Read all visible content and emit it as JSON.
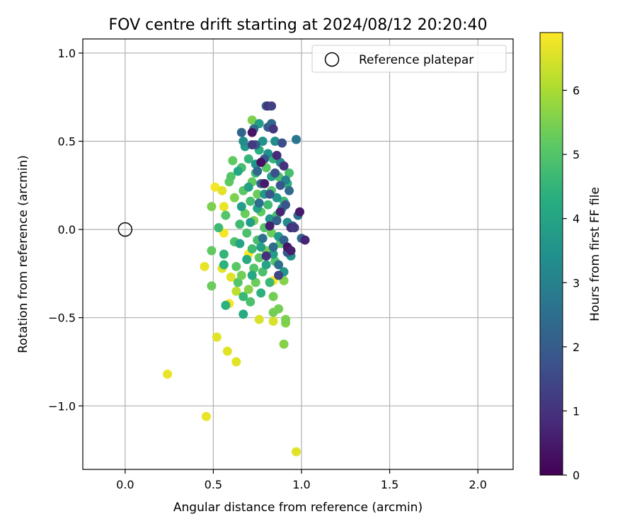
{
  "chart_data": {
    "type": "scatter",
    "title": "FOV centre drift starting at 2024/08/12 20:20:40",
    "xlabel": "Angular distance from reference (arcmin)",
    "ylabel": "Rotation from reference (arcmin)",
    "xlim": [
      -0.24,
      2.2
    ],
    "ylim": [
      -1.36,
      1.08
    ],
    "xticks": [
      0.0,
      0.5,
      1.0,
      1.5,
      2.0
    ],
    "xtick_labels": [
      "0.0",
      "0.5",
      "1.0",
      "1.5",
      "2.0"
    ],
    "yticks": [
      -1.0,
      -0.5,
      0.0,
      0.5,
      1.0
    ],
    "ytick_labels": [
      "−1.0",
      "−0.5",
      "0.0",
      "0.5",
      "1.0"
    ],
    "grid": true,
    "legend": {
      "placement": "top-right",
      "entries": [
        {
          "label": "Reference platepar",
          "marker": "open-circle",
          "color": "#000000"
        }
      ]
    },
    "reference_point": {
      "x": 0.0,
      "y": 0.0
    },
    "colorbar": {
      "label": "Hours from first FF file",
      "colormap": "viridis",
      "range": [
        0,
        6.9
      ],
      "ticks": [
        0,
        1,
        2,
        3,
        4,
        5,
        6
      ],
      "tick_labels": [
        "0",
        "1",
        "2",
        "3",
        "4",
        "5",
        "6"
      ]
    },
    "points": [
      {
        "x": 0.24,
        "y": -0.82,
        "h": 6.7
      },
      {
        "x": 0.46,
        "y": -1.06,
        "h": 6.7
      },
      {
        "x": 0.97,
        "y": -1.26,
        "h": 6.6
      },
      {
        "x": 0.52,
        "y": -0.61,
        "h": 6.6
      },
      {
        "x": 0.58,
        "y": -0.69,
        "h": 6.6
      },
      {
        "x": 0.63,
        "y": -0.75,
        "h": 6.6
      },
      {
        "x": 0.45,
        "y": -0.21,
        "h": 6.7
      },
      {
        "x": 0.51,
        "y": 0.24,
        "h": 6.8
      },
      {
        "x": 0.55,
        "y": 0.22,
        "h": 6.6
      },
      {
        "x": 0.56,
        "y": 0.13,
        "h": 6.7
      },
      {
        "x": 0.56,
        "y": -0.02,
        "h": 6.8
      },
      {
        "x": 0.55,
        "y": -0.22,
        "h": 6.6
      },
      {
        "x": 0.6,
        "y": -0.27,
        "h": 6.6
      },
      {
        "x": 0.59,
        "y": -0.42,
        "h": 6.8
      },
      {
        "x": 0.7,
        "y": -0.14,
        "h": 6.9
      },
      {
        "x": 0.76,
        "y": -0.51,
        "h": 6.5
      },
      {
        "x": 0.84,
        "y": -0.52,
        "h": 6.5
      },
      {
        "x": 0.84,
        "y": -0.29,
        "h": 6.9
      },
      {
        "x": 0.63,
        "y": -0.35,
        "h": 6.2
      },
      {
        "x": 0.9,
        "y": -0.65,
        "h": 5.6
      },
      {
        "x": 0.91,
        "y": -0.53,
        "h": 5.6
      },
      {
        "x": 0.91,
        "y": -0.51,
        "h": 5.5
      },
      {
        "x": 0.87,
        "y": -0.45,
        "h": 5.4
      },
      {
        "x": 0.84,
        "y": -0.47,
        "h": 5.4
      },
      {
        "x": 0.84,
        "y": -0.38,
        "h": 5.4
      },
      {
        "x": 0.9,
        "y": -0.29,
        "h": 5.6
      },
      {
        "x": 0.49,
        "y": 0.13,
        "h": 5.5
      },
      {
        "x": 0.49,
        "y": -0.12,
        "h": 5.2
      },
      {
        "x": 0.49,
        "y": -0.32,
        "h": 5.3
      },
      {
        "x": 0.57,
        "y": -0.43,
        "h": 4.4
      },
      {
        "x": 0.67,
        "y": -0.48,
        "h": 4.2
      },
      {
        "x": 0.72,
        "y": 0.62,
        "h": 5.5
      },
      {
        "x": 0.61,
        "y": 0.39,
        "h": 5.2
      },
      {
        "x": 0.53,
        "y": 0.01,
        "h": 4.7
      },
      {
        "x": 0.56,
        "y": -0.14,
        "h": 4.5
      },
      {
        "x": 0.56,
        "y": -0.2,
        "h": 4.4
      },
      {
        "x": 0.57,
        "y": 0.08,
        "h": 5.0
      },
      {
        "x": 0.59,
        "y": 0.27,
        "h": 5.2
      },
      {
        "x": 0.6,
        "y": 0.3,
        "h": 5.0
      },
      {
        "x": 0.62,
        "y": 0.18,
        "h": 5.5
      },
      {
        "x": 0.62,
        "y": -0.07,
        "h": 4.9
      },
      {
        "x": 0.63,
        "y": -0.21,
        "h": 5.1
      },
      {
        "x": 0.64,
        "y": -0.3,
        "h": 5.0
      },
      {
        "x": 0.65,
        "y": 0.03,
        "h": 4.7
      },
      {
        "x": 0.66,
        "y": 0.35,
        "h": 4.8
      },
      {
        "x": 0.66,
        "y": -0.26,
        "h": 5.4
      },
      {
        "x": 0.67,
        "y": 0.22,
        "h": 5.1
      },
      {
        "x": 0.67,
        "y": -0.38,
        "h": 4.6
      },
      {
        "x": 0.68,
        "y": 0.09,
        "h": 5.3
      },
      {
        "x": 0.69,
        "y": -0.02,
        "h": 4.9
      },
      {
        "x": 0.7,
        "y": 0.4,
        "h": 4.5
      },
      {
        "x": 0.7,
        "y": -0.34,
        "h": 5.6
      },
      {
        "x": 0.71,
        "y": 0.16,
        "h": 4.8
      },
      {
        "x": 0.71,
        "y": -0.41,
        "h": 4.9
      },
      {
        "x": 0.72,
        "y": 0.27,
        "h": 5.2
      },
      {
        "x": 0.72,
        "y": -0.11,
        "h": 4.7
      },
      {
        "x": 0.73,
        "y": 0.05,
        "h": 5.5
      },
      {
        "x": 0.73,
        "y": -0.22,
        "h": 5.0
      },
      {
        "x": 0.74,
        "y": 0.32,
        "h": 4.6
      },
      {
        "x": 0.74,
        "y": -0.3,
        "h": 5.3
      },
      {
        "x": 0.75,
        "y": 0.2,
        "h": 5.3
      },
      {
        "x": 0.75,
        "y": -0.06,
        "h": 4.8
      },
      {
        "x": 0.76,
        "y": 0.45,
        "h": 4.3
      },
      {
        "x": 0.76,
        "y": -0.16,
        "h": 5.1
      },
      {
        "x": 0.77,
        "y": 0.1,
        "h": 5.2
      },
      {
        "x": 0.77,
        "y": -0.36,
        "h": 4.4
      },
      {
        "x": 0.78,
        "y": 0.26,
        "h": 5.7
      },
      {
        "x": 0.78,
        "y": -0.24,
        "h": 4.9
      },
      {
        "x": 0.79,
        "y": 0.01,
        "h": 5.0
      },
      {
        "x": 0.8,
        "y": 0.35,
        "h": 5.1
      },
      {
        "x": 0.8,
        "y": -0.12,
        "h": 5.4
      },
      {
        "x": 0.81,
        "y": 0.14,
        "h": 4.7
      },
      {
        "x": 0.82,
        "y": -0.3,
        "h": 4.6
      },
      {
        "x": 0.83,
        "y": 0.22,
        "h": 5.0
      },
      {
        "x": 0.83,
        "y": -0.02,
        "h": 5.3
      },
      {
        "x": 0.84,
        "y": 0.4,
        "h": 4.5
      },
      {
        "x": 0.85,
        "y": -0.18,
        "h": 5.0
      },
      {
        "x": 0.86,
        "y": 0.08,
        "h": 4.8
      },
      {
        "x": 0.87,
        "y": 0.3,
        "h": 4.9
      },
      {
        "x": 0.88,
        "y": -0.08,
        "h": 5.1
      },
      {
        "x": 0.9,
        "y": 0.16,
        "h": 4.6
      },
      {
        "x": 0.92,
        "y": 0.26,
        "h": 4.4
      },
      {
        "x": 0.93,
        "y": 0.32,
        "h": 4.8
      },
      {
        "x": 0.64,
        "y": 0.33,
        "h": 4.1
      },
      {
        "x": 0.65,
        "y": -0.08,
        "h": 4.0
      },
      {
        "x": 0.66,
        "y": 0.13,
        "h": 3.8
      },
      {
        "x": 0.68,
        "y": 0.47,
        "h": 3.7
      },
      {
        "x": 0.69,
        "y": -0.17,
        "h": 4.2
      },
      {
        "x": 0.7,
        "y": 0.24,
        "h": 3.9
      },
      {
        "x": 0.71,
        "y": 0.04,
        "h": 3.8
      },
      {
        "x": 0.72,
        "y": -0.26,
        "h": 4.1
      },
      {
        "x": 0.74,
        "y": 0.37,
        "h": 3.6
      },
      {
        "x": 0.75,
        "y": 0.12,
        "h": 4.0
      },
      {
        "x": 0.76,
        "y": 0.6,
        "h": 3.8
      },
      {
        "x": 0.77,
        "y": -0.1,
        "h": 3.9
      },
      {
        "x": 0.78,
        "y": 0.5,
        "h": 3.5
      },
      {
        "x": 0.79,
        "y": 0.2,
        "h": 3.7
      },
      {
        "x": 0.8,
        "y": -0.2,
        "h": 4.0
      },
      {
        "x": 0.81,
        "y": 0.43,
        "h": 3.4
      },
      {
        "x": 0.82,
        "y": 0.06,
        "h": 3.6
      },
      {
        "x": 0.83,
        "y": 0.3,
        "h": 3.9
      },
      {
        "x": 0.84,
        "y": -0.14,
        "h": 3.8
      },
      {
        "x": 0.85,
        "y": 0.5,
        "h": 3.3
      },
      {
        "x": 0.86,
        "y": 0.18,
        "h": 3.5
      },
      {
        "x": 0.87,
        "y": -0.04,
        "h": 3.7
      },
      {
        "x": 0.88,
        "y": 0.38,
        "h": 3.2
      },
      {
        "x": 0.89,
        "y": 0.12,
        "h": 3.4
      },
      {
        "x": 0.9,
        "y": -0.24,
        "h": 3.6
      },
      {
        "x": 0.91,
        "y": 0.28,
        "h": 3.1
      },
      {
        "x": 0.92,
        "y": 0.04,
        "h": 3.3
      },
      {
        "x": 0.94,
        "y": -0.15,
        "h": 3.5
      },
      {
        "x": 0.67,
        "y": 0.5,
        "h": 3.3
      },
      {
        "x": 0.66,
        "y": 0.55,
        "h": 2.2
      },
      {
        "x": 0.97,
        "y": 0.51,
        "h": 2.7
      },
      {
        "x": 0.73,
        "y": 0.57,
        "h": 2.4
      },
      {
        "x": 0.74,
        "y": 0.48,
        "h": 2.0
      },
      {
        "x": 0.75,
        "y": 0.33,
        "h": 2.3
      },
      {
        "x": 0.76,
        "y": 0.15,
        "h": 2.5
      },
      {
        "x": 0.77,
        "y": 0.26,
        "h": 2.1
      },
      {
        "x": 0.78,
        "y": -0.05,
        "h": 2.6
      },
      {
        "x": 0.79,
        "y": 0.4,
        "h": 1.9
      },
      {
        "x": 0.8,
        "y": 0.7,
        "h": 2.2
      },
      {
        "x": 0.81,
        "y": 0.58,
        "h": 2.0
      },
      {
        "x": 0.82,
        "y": 0.2,
        "h": 1.8
      },
      {
        "x": 0.83,
        "y": 0.6,
        "h": 2.3
      },
      {
        "x": 0.84,
        "y": -0.1,
        "h": 2.4
      },
      {
        "x": 0.85,
        "y": 0.32,
        "h": 1.7
      },
      {
        "x": 0.86,
        "y": 0.05,
        "h": 2.1
      },
      {
        "x": 0.87,
        "y": -0.2,
        "h": 2.5
      },
      {
        "x": 0.88,
        "y": 0.25,
        "h": 1.9
      },
      {
        "x": 0.89,
        "y": 0.49,
        "h": 1.6
      },
      {
        "x": 0.9,
        "y": -0.06,
        "h": 2.2
      },
      {
        "x": 0.91,
        "y": 0.14,
        "h": 1.8
      },
      {
        "x": 0.92,
        "y": -0.13,
        "h": 2.0
      },
      {
        "x": 0.93,
        "y": 0.22,
        "h": 2.4
      },
      {
        "x": 0.95,
        "y": 0.02,
        "h": 2.1
      },
      {
        "x": 0.98,
        "y": 0.08,
        "h": 2.6
      },
      {
        "x": 1.0,
        "y": -0.05,
        "h": 2.3
      },
      {
        "x": 0.81,
        "y": 0.7,
        "h": 1.0
      },
      {
        "x": 0.83,
        "y": 0.7,
        "h": 1.3
      },
      {
        "x": 0.72,
        "y": 0.55,
        "h": 0.4
      },
      {
        "x": 0.72,
        "y": 0.48,
        "h": 1.2
      },
      {
        "x": 0.84,
        "y": 0.57,
        "h": 1.1
      },
      {
        "x": 0.86,
        "y": 0.42,
        "h": 0.8
      },
      {
        "x": 0.88,
        "y": 0.1,
        "h": 0.7
      },
      {
        "x": 0.9,
        "y": 0.36,
        "h": 1.0
      },
      {
        "x": 0.92,
        "y": -0.1,
        "h": 0.4
      },
      {
        "x": 0.94,
        "y": 0.01,
        "h": 0.9
      },
      {
        "x": 0.94,
        "y": -0.12,
        "h": 0.6
      },
      {
        "x": 0.99,
        "y": 0.1,
        "h": 0.5
      },
      {
        "x": 1.02,
        "y": -0.06,
        "h": 0.7
      },
      {
        "x": 0.96,
        "y": 0.01,
        "h": 1.2
      },
      {
        "x": 0.79,
        "y": 0.26,
        "h": 0.5
      },
      {
        "x": 0.8,
        "y": -0.15,
        "h": 0.9
      },
      {
        "x": 0.77,
        "y": 0.38,
        "h": 0.3
      },
      {
        "x": 0.82,
        "y": 0.02,
        "h": 0.6
      },
      {
        "x": 0.87,
        "y": -0.26,
        "h": 1.4
      }
    ]
  }
}
